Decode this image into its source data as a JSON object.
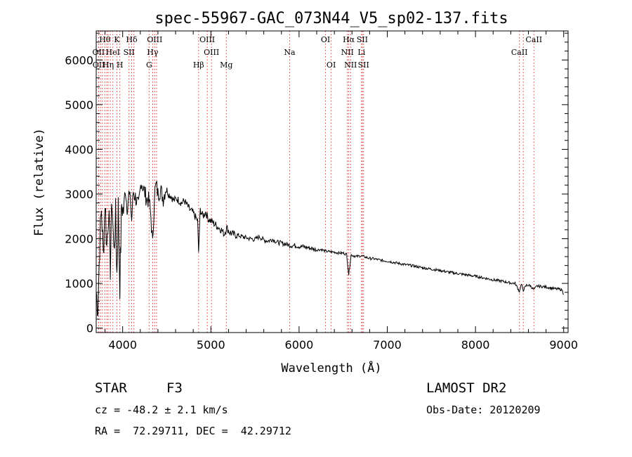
{
  "chart_data": {
    "type": "line",
    "title": "spec-55967-GAC_073N44_V5_sp02-137.fits",
    "xlabel": "Wavelength (Å)",
    "ylabel": "Flux (relative)",
    "xlim": [
      3700,
      9050
    ],
    "ylim": [
      -100,
      6650
    ],
    "x_ticks": [
      4000,
      5000,
      6000,
      7000,
      8000,
      9000
    ],
    "y_ticks": [
      0,
      1000,
      2000,
      3000,
      4000,
      5000,
      6000
    ],
    "grid": false,
    "series": [
      {
        "color": "#000000",
        "x": [
          3700,
          3720,
          3740,
          3760,
          3780,
          3800,
          3820,
          3840,
          3860,
          3880,
          3900,
          3920,
          3935,
          3950,
          3968,
          3990,
          4010,
          4030,
          4050,
          4070,
          4090,
          4102,
          4120,
          4150,
          4180,
          4210,
          4240,
          4270,
          4300,
          4320,
          4340,
          4360,
          4380,
          4400,
          4430,
          4460,
          4490,
          4520,
          4550,
          4580,
          4610,
          4640,
          4670,
          4700,
          4730,
          4760,
          4790,
          4820,
          4850,
          4861,
          4880,
          4910,
          4940,
          4970,
          5000,
          5030,
          5060,
          5090,
          5120,
          5150,
          5180,
          5210,
          5250,
          5300,
          5350,
          5400,
          5450,
          5500,
          5550,
          5600,
          5650,
          5700,
          5750,
          5800,
          5850,
          5900,
          5950,
          6000,
          6050,
          6100,
          6150,
          6200,
          6250,
          6300,
          6350,
          6400,
          6450,
          6500,
          6540,
          6563,
          6590,
          6620,
          6650,
          6700,
          6750,
          6800,
          6850,
          6900,
          6950,
          7000,
          7100,
          7200,
          7300,
          7400,
          7500,
          7600,
          7700,
          7800,
          7900,
          8000,
          8100,
          8200,
          8300,
          8400,
          8450,
          8498,
          8520,
          8542,
          8580,
          8620,
          8662,
          8700,
          8750,
          8800,
          8850,
          8900,
          8950,
          8980,
          9000
        ],
        "values": [
          800,
          500,
          1900,
          2700,
          1600,
          2900,
          1800,
          2700,
          1400,
          2900,
          1700,
          2500,
          1200,
          2700,
          1000,
          2800,
          2600,
          3150,
          2700,
          3000,
          2800,
          2400,
          3050,
          2900,
          2700,
          3300,
          3100,
          2900,
          2850,
          2500,
          1850,
          3000,
          3200,
          3000,
          3100,
          2900,
          3150,
          3000,
          2950,
          2850,
          2900,
          2850,
          2800,
          2850,
          2750,
          2650,
          2600,
          2500,
          2400,
          1700,
          2650,
          2500,
          2600,
          2450,
          2400,
          2350,
          2300,
          2250,
          2200,
          2100,
          2250,
          2150,
          2100,
          2080,
          2050,
          2020,
          2000,
          1980,
          2050,
          1970,
          1950,
          1990,
          1920,
          1900,
          1880,
          1850,
          1850,
          1830,
          1820,
          1800,
          1780,
          1750,
          1760,
          1720,
          1710,
          1700,
          1680,
          1680,
          1650,
          1200,
          1640,
          1620,
          1600,
          1620,
          1590,
          1560,
          1550,
          1530,
          1510,
          1500,
          1460,
          1420,
          1390,
          1350,
          1320,
          1290,
          1250,
          1220,
          1190,
          1160,
          1120,
          1080,
          1050,
          1010,
          1000,
          820,
          980,
          850,
          960,
          950,
          860,
          940,
          930,
          920,
          900,
          880,
          870,
          860,
          750
        ]
      }
    ],
    "lines_top": [
      {
        "label": "Hθ",
        "x": 3798
      },
      {
        "label": "K",
        "x": 3934
      },
      {
        "label": "Hδ",
        "x": 4102
      },
      {
        "label": "OIII",
        "x": 4363
      },
      {
        "label": "OIII",
        "x": 4959
      },
      {
        "label": "OI",
        "x": 6300
      },
      {
        "label": "Hα",
        "x": 6563
      },
      {
        "label": "SII",
        "x": 6716
      },
      {
        "label": "CaII",
        "x": 8662
      }
    ],
    "lines_mid": [
      {
        "label": "OII",
        "x": 3727
      },
      {
        "label": "HeI",
        "x": 3889
      },
      {
        "label": "SII",
        "x": 4072
      },
      {
        "label": "Hγ",
        "x": 4340
      },
      {
        "label": "OIII",
        "x": 5007
      },
      {
        "label": "Na",
        "x": 5893
      },
      {
        "label": "NII",
        "x": 6548
      },
      {
        "label": "Li",
        "x": 6708
      },
      {
        "label": "CaII",
        "x": 8498
      }
    ],
    "lines_low": [
      {
        "label": "OII",
        "x": 3729
      },
      {
        "label": "Hη",
        "x": 3835
      },
      {
        "label": "H",
        "x": 3968
      },
      {
        "label": "G",
        "x": 4300
      },
      {
        "label": "Hβ",
        "x": 4861
      },
      {
        "label": "Mg",
        "x": 5175
      },
      {
        "label": "OI",
        "x": 6364
      },
      {
        "label": "NII",
        "x": 6584
      },
      {
        "label": "SII",
        "x": 6731
      }
    ],
    "extra_lines": [
      3750,
      3770,
      3820,
      3860,
      4128,
      4385,
      8542
    ]
  },
  "info": {
    "object_class": "STAR",
    "subclass": "F3",
    "survey": "LAMOST DR2",
    "cz": "cz = -48.2 ± 2.1 km/s",
    "obs_date": "Obs-Date: 20120209",
    "coords": "RA =  72.29711, DEC =  42.29712"
  }
}
